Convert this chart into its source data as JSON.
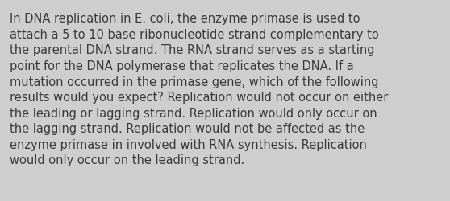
{
  "lines": [
    "In DNA replication in E. coli, the enzyme primase is used to",
    "attach a 5 to 10 base ribonucleotide strand complementary to",
    "the parental DNA strand. The RNA strand serves as a starting",
    "point for the DNA polymerase that replicates the DNA. If a",
    "mutation occurred in the primase gene, which of the following",
    "results would you expect? Replication would not occur on either",
    "the leading or lagging strand. Replication would only occur on",
    "the lagging strand. Replication would not be affected as the",
    "enzyme primase in involved with RNA synthesis. Replication",
    "would only occur on the leading strand."
  ],
  "background_color": "#cecece",
  "text_color": "#3a3a3a",
  "font_size": 10.5,
  "fig_width": 5.58,
  "fig_height": 2.51,
  "dpi": 100,
  "linespacing": 1.38
}
